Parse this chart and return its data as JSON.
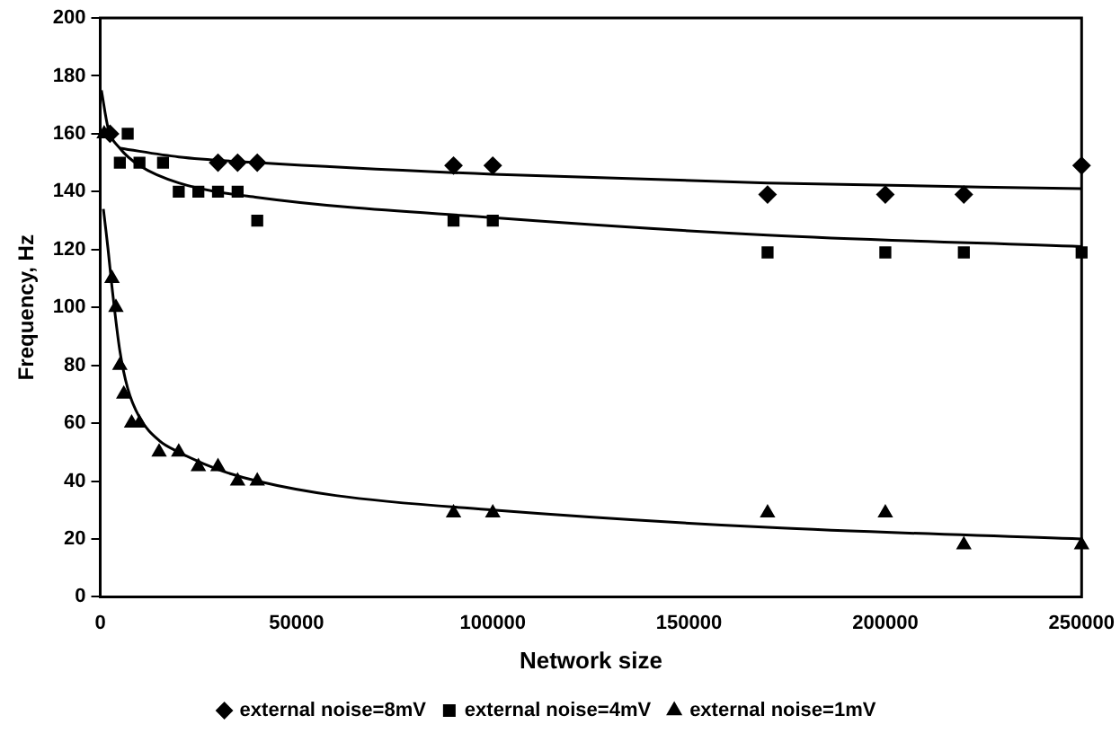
{
  "chart_data": {
    "type": "scatter",
    "xlabel": "Network size",
    "ylabel": "Frequency, Hz",
    "xlim": [
      0,
      250000
    ],
    "xticks": [
      0,
      50000,
      100000,
      150000,
      200000,
      250000
    ],
    "ylim": [
      0,
      200
    ],
    "yticks": [
      0,
      20,
      40,
      60,
      80,
      100,
      120,
      140,
      160,
      180,
      200
    ],
    "grid": false,
    "legend": "bottom",
    "series": [
      {
        "name": "external noise=8mV",
        "color": "#000000",
        "marker": "diamond",
        "x": [
          2500,
          30000,
          35000,
          40000,
          90000,
          100000,
          170000,
          200000,
          220000,
          250000
        ],
        "values": [
          160,
          150,
          150,
          150,
          149,
          149,
          139,
          139,
          139,
          149
        ]
      },
      {
        "name": "external noise=4mV",
        "color": "#000000",
        "marker": "square",
        "x": [
          7000,
          5000,
          10000,
          16000,
          20000,
          25000,
          30000,
          35000,
          40000,
          90000,
          100000,
          170000,
          200000,
          220000,
          250000
        ],
        "values": [
          160,
          150,
          150,
          150,
          140,
          140,
          140,
          140,
          130,
          130,
          130,
          119,
          119,
          119,
          119
        ]
      },
      {
        "name": "external noise=1mV",
        "color": "#000000",
        "marker": "triangle",
        "x": [
          1000,
          3000,
          4000,
          5000,
          6000,
          8000,
          10000,
          15000,
          20000,
          25000,
          30000,
          35000,
          40000,
          90000,
          100000,
          170000,
          200000,
          220000,
          250000
        ],
        "values": [
          160,
          110,
          100,
          80,
          70,
          60,
          60,
          50,
          50,
          45,
          45,
          40,
          40,
          29,
          29,
          29,
          29,
          18,
          18
        ]
      },
      {
        "type": "line",
        "color": "#000000",
        "marker": "none",
        "x": [
          5000,
          20000,
          40000,
          100000,
          170000,
          250000
        ],
        "values": [
          155,
          152,
          150,
          146,
          143,
          141
        ]
      },
      {
        "type": "line",
        "color": "#000000",
        "marker": "none",
        "x": [
          300,
          2000,
          5000,
          10000,
          20000,
          40000,
          100000,
          170000,
          250000
        ],
        "values": [
          175,
          162,
          155,
          149,
          143,
          138,
          131,
          125,
          121
        ]
      },
      {
        "type": "line",
        "color": "#000000",
        "marker": "none",
        "x": [
          800,
          1500,
          2000,
          3000,
          5000,
          7000,
          10000,
          15000,
          20000,
          30000,
          40000,
          60000,
          100000,
          170000,
          250000
        ],
        "values": [
          134,
          126,
          120,
          107,
          85,
          72,
          62,
          54,
          50,
          44,
          40,
          35,
          30,
          24,
          20
        ]
      }
    ]
  }
}
